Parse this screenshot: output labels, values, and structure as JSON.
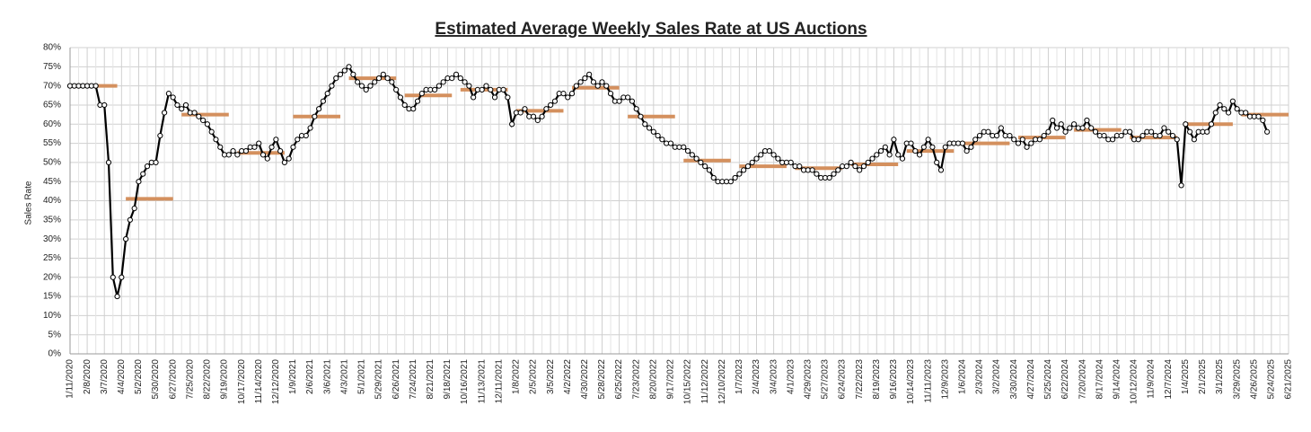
{
  "chart_data": {
    "type": "line",
    "title": "Estimated Average Weekly Sales Rate at US Auctions",
    "y_label": "Sales Rate",
    "grid": true,
    "ylim": [
      0,
      80
    ],
    "yticks": [
      {
        "value": 0,
        "label": "0%"
      },
      {
        "value": 5,
        "label": "5%"
      },
      {
        "value": 10,
        "label": "10%"
      },
      {
        "value": 15,
        "label": "15%"
      },
      {
        "value": 20,
        "label": "20%"
      },
      {
        "value": 25,
        "label": "25%"
      },
      {
        "value": 30,
        "label": "30%"
      },
      {
        "value": 35,
        "label": "35%"
      },
      {
        "value": 40,
        "label": "40%"
      },
      {
        "value": 45,
        "label": "45%"
      },
      {
        "value": 50,
        "label": "50%"
      },
      {
        "value": 55,
        "label": "55%"
      },
      {
        "value": 60,
        "label": "60%"
      },
      {
        "value": 65,
        "label": "65%"
      },
      {
        "value": 70,
        "label": "70%"
      },
      {
        "value": 75,
        "label": "75%"
      },
      {
        "value": 80,
        "label": "80%"
      }
    ],
    "categories": [
      "1/11/2020",
      null,
      null,
      null,
      "2/8/2020",
      null,
      null,
      null,
      "3/7/2020",
      null,
      null,
      null,
      "4/4/2020",
      null,
      null,
      null,
      "5/2/2020",
      null,
      null,
      null,
      "5/30/2020",
      null,
      null,
      null,
      "6/27/2020",
      null,
      null,
      null,
      "7/25/2020",
      null,
      null,
      null,
      "8/22/2020",
      null,
      null,
      null,
      "9/19/2020",
      null,
      null,
      null,
      "10/17/2020",
      null,
      null,
      null,
      "11/14/2020",
      null,
      null,
      null,
      "12/12/2020",
      null,
      null,
      null,
      "1/9/2021",
      null,
      null,
      null,
      "2/6/2021",
      null,
      null,
      null,
      "3/6/2021",
      null,
      null,
      null,
      "4/3/2021",
      null,
      null,
      null,
      "5/1/2021",
      null,
      null,
      null,
      "5/29/2021",
      null,
      null,
      null,
      "6/26/2021",
      null,
      null,
      null,
      "7/24/2021",
      null,
      null,
      null,
      "8/21/2021",
      null,
      null,
      null,
      "9/18/2021",
      null,
      null,
      null,
      "10/16/2021",
      null,
      null,
      null,
      "11/13/2021",
      null,
      null,
      null,
      "12/11/2021",
      null,
      null,
      null,
      "1/8/2022",
      null,
      null,
      null,
      "2/5/2022",
      null,
      null,
      null,
      "3/5/2022",
      null,
      null,
      null,
      "4/2/2022",
      null,
      null,
      null,
      "4/30/2022",
      null,
      null,
      null,
      "5/28/2022",
      null,
      null,
      null,
      "6/25/2022",
      null,
      null,
      null,
      "7/23/2022",
      null,
      null,
      null,
      "8/20/2022",
      null,
      null,
      null,
      "9/17/2022",
      null,
      null,
      null,
      "10/15/2022",
      null,
      null,
      null,
      "11/12/2022",
      null,
      null,
      null,
      "12/10/2022",
      null,
      null,
      null,
      "1/7/2023",
      null,
      null,
      null,
      "2/4/2023",
      null,
      null,
      null,
      "3/4/2023",
      null,
      null,
      null,
      "4/1/2023",
      null,
      null,
      null,
      "4/29/2023",
      null,
      null,
      null,
      "5/27/2023",
      null,
      null,
      null,
      "6/24/2023",
      null,
      null,
      null,
      "7/22/2023",
      null,
      null,
      null,
      "8/19/2023",
      null,
      null,
      null,
      "9/16/2023",
      null,
      null,
      null,
      "10/14/2023",
      null,
      null,
      null,
      "11/11/2023",
      null,
      null,
      null,
      "12/9/2023",
      null,
      null,
      null,
      "1/6/2024",
      null,
      null,
      null,
      "2/3/2024",
      null,
      null,
      null,
      "3/2/2024",
      null,
      null,
      null,
      "3/30/2024",
      null,
      null,
      null,
      "4/27/2024",
      null,
      null,
      null,
      "5/25/2024",
      null,
      null,
      null,
      "6/22/2024",
      null,
      null,
      null,
      "7/20/2024",
      null,
      null,
      null,
      "8/17/2024",
      null,
      null,
      null,
      "9/14/2024",
      null,
      null,
      null,
      "10/12/2024",
      null,
      null,
      null,
      "11/9/2024",
      null,
      null,
      null,
      "12/7/2024",
      null,
      null,
      null,
      "1/4/2025",
      null,
      null,
      null,
      "2/1/2025",
      null,
      null,
      null,
      "3/1/2025",
      null,
      null,
      null,
      "3/29/2025",
      null,
      null,
      null,
      "4/26/2025",
      null,
      null,
      null,
      "5/24/2025",
      null,
      null,
      null,
      "6/21/2025"
    ],
    "series": [
      {
        "color": "#000000",
        "values": [
          70,
          70,
          70,
          70,
          70,
          70,
          70,
          65,
          65,
          50,
          20,
          15,
          20,
          30,
          35,
          38,
          45,
          47,
          49,
          50,
          50,
          57,
          63,
          68,
          67,
          65,
          64,
          65,
          63,
          63,
          62,
          61,
          60,
          58,
          56,
          54,
          52,
          52,
          53,
          52,
          53,
          53,
          54,
          54,
          55,
          52,
          51,
          54,
          56,
          53,
          50,
          51,
          54,
          56,
          57,
          57,
          59,
          62,
          64,
          66,
          68,
          70,
          72,
          73,
          74,
          75,
          73,
          71,
          70,
          69,
          70,
          71,
          72,
          73,
          72,
          71,
          69,
          67,
          65,
          64,
          64,
          66,
          68,
          69,
          69,
          69,
          70,
          71,
          72,
          72,
          73,
          72,
          71,
          70,
          67,
          69,
          69,
          70,
          69,
          67,
          69,
          69,
          67,
          60,
          63,
          63,
          64,
          62,
          62,
          61,
          62,
          64,
          65,
          66,
          68,
          68,
          67,
          68,
          70,
          71,
          72,
          73,
          71,
          70,
          71,
          70,
          68,
          66,
          66,
          67,
          67,
          66,
          64,
          62,
          60,
          59,
          58,
          57,
          56,
          55,
          55,
          54,
          54,
          54,
          53,
          52,
          51,
          50,
          49,
          48,
          46,
          45,
          45,
          45,
          45,
          46,
          47,
          48,
          49,
          50,
          51,
          52,
          53,
          53,
          52,
          51,
          50,
          50,
          50,
          49,
          49,
          48,
          48,
          48,
          47,
          46,
          46,
          46,
          47,
          48,
          49,
          49,
          50,
          49,
          48,
          49,
          50,
          51,
          52,
          53,
          54,
          52,
          56,
          52,
          51,
          55,
          55,
          53,
          52,
          54,
          56,
          54,
          50,
          48,
          54,
          55,
          55,
          55,
          55,
          53,
          54,
          56,
          57,
          58,
          58,
          57,
          57,
          59,
          57,
          57,
          56,
          55,
          56,
          54,
          55,
          56,
          56,
          57,
          58,
          61,
          59,
          60,
          58,
          59,
          60,
          59,
          59,
          61,
          59,
          58,
          57,
          57,
          56,
          56,
          57,
          57,
          58,
          58,
          56,
          56,
          57,
          58,
          58,
          57,
          57,
          59,
          58,
          57,
          56,
          44,
          60,
          58,
          56,
          58,
          58,
          58,
          60,
          63,
          65,
          64,
          63,
          66,
          64,
          63,
          63,
          62,
          62,
          62,
          61,
          58,
          null,
          null,
          null,
          null,
          null
        ]
      }
    ],
    "averages": {
      "color": "#d4905e",
      "values": [
        70,
        40.5,
        62.5,
        52.5,
        62,
        72,
        67.5,
        69,
        63.5,
        69.5,
        62,
        50.5,
        49,
        48.5,
        49.5,
        53,
        55,
        56.5,
        58.5,
        56.5,
        60,
        62.5
      ]
    }
  }
}
